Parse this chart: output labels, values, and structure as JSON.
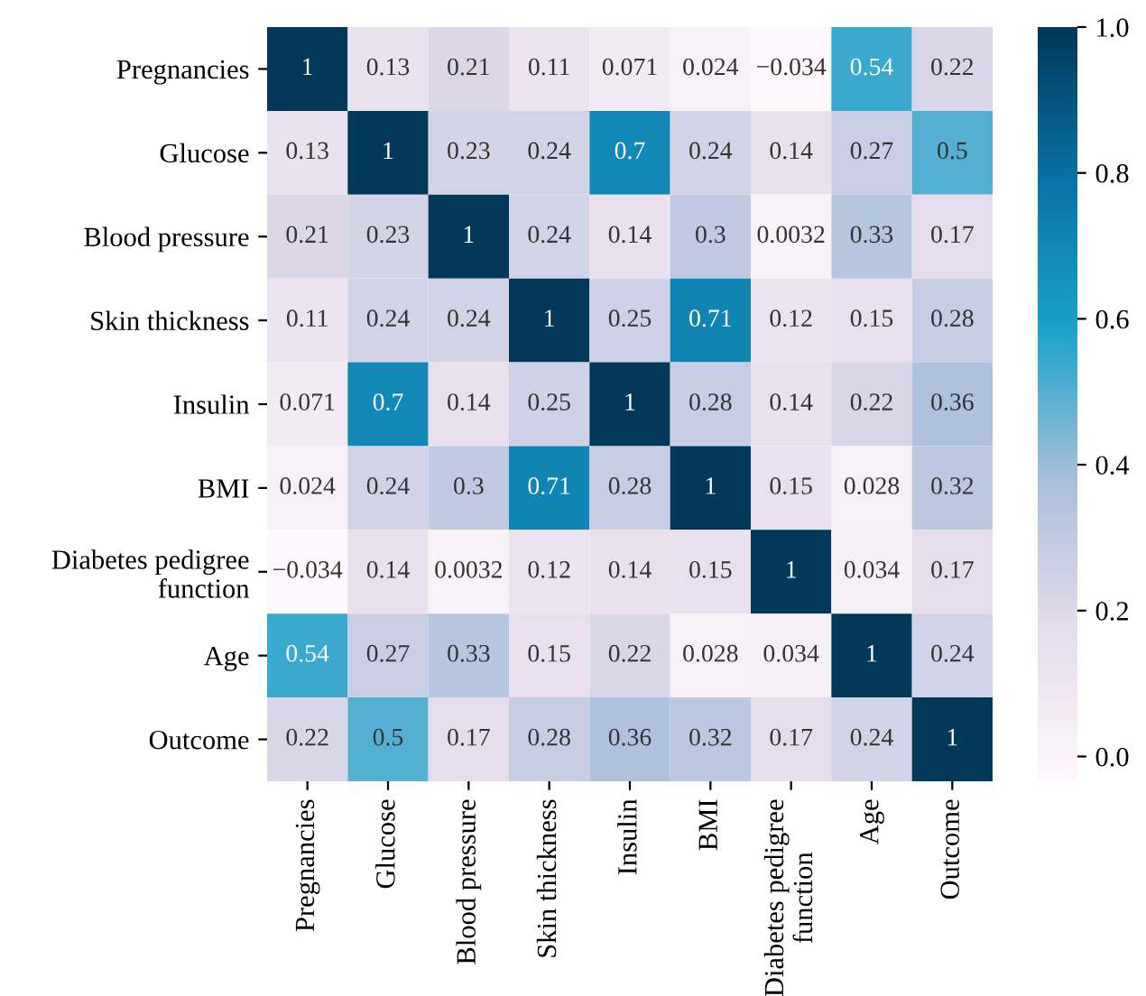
{
  "chart_data": {
    "type": "heatmap",
    "categories": [
      "Pregnancies",
      "Glucose",
      "Blood pressure",
      "Skin thickness",
      "Insulin",
      "BMI",
      "Diabetes pedigree\nfunction",
      "Age",
      "Outcome"
    ],
    "y_categories": [
      "Pregnancies",
      "Glucose",
      "Blood pressure",
      "Skin thickness",
      "Insulin",
      "BMI",
      "Diabetes pedigree\nfunction",
      "Age",
      "Outcome"
    ],
    "cells": [
      [
        1,
        0.13,
        0.21,
        0.11,
        0.071,
        0.024,
        -0.034,
        0.54,
        0.22
      ],
      [
        0.13,
        1,
        0.23,
        0.24,
        0.7,
        0.24,
        0.14,
        0.27,
        0.5
      ],
      [
        0.21,
        0.23,
        1,
        0.24,
        0.14,
        0.3,
        0.0032,
        0.33,
        0.17
      ],
      [
        0.11,
        0.24,
        0.24,
        1,
        0.25,
        0.71,
        0.12,
        0.15,
        0.28
      ],
      [
        0.071,
        0.7,
        0.14,
        0.25,
        1,
        0.28,
        0.14,
        0.22,
        0.36
      ],
      [
        0.024,
        0.24,
        0.3,
        0.71,
        0.28,
        1,
        0.15,
        0.028,
        0.32
      ],
      [
        -0.034,
        0.14,
        0.0032,
        0.12,
        0.14,
        0.15,
        1,
        0.034,
        0.17
      ],
      [
        0.54,
        0.27,
        0.33,
        0.15,
        0.22,
        0.028,
        0.034,
        1,
        0.24
      ],
      [
        0.22,
        0.5,
        0.17,
        0.28,
        0.36,
        0.32,
        0.17,
        0.24,
        1
      ]
    ],
    "data_labels": true,
    "clim": [
      -0.034,
      1
    ],
    "cticks": [
      {
        "value": 0,
        "label": "0.0"
      },
      0.2,
      0.4,
      0.6,
      0.8,
      {
        "value": 1,
        "label": "1.0"
      }
    ]
  }
}
